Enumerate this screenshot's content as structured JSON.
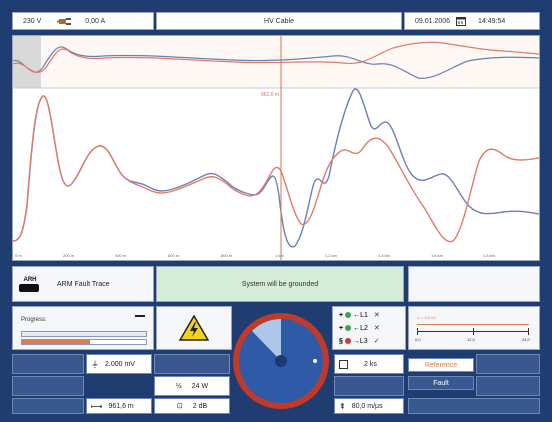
{
  "header": {
    "voltage": "230 V",
    "current": "0,00 A",
    "title": "HV Cable",
    "date": "09.01.2006",
    "time": "14:49:54"
  },
  "plot": {
    "cursor_label": "961,6 m",
    "x_ticks": [
      "0 m",
      "200 m",
      "400 m",
      "600 m",
      "800 m",
      "1 km",
      "1,2 km",
      "1,4 km",
      "1,6 km",
      "1,8 km"
    ],
    "trace_colors": {
      "blue": "#6d7fb5",
      "red": "#e07c68",
      "cursor": "#e0724e"
    }
  },
  "mode": {
    "logo_text": "ARH",
    "label": "ARM Fault Trace",
    "status": "System will be grounded"
  },
  "progress": {
    "label": "Progress:",
    "value": 0.55
  },
  "phases": {
    "l1": "L1",
    "l2": "L2",
    "l3": "L3",
    "l1_mark": "✕",
    "l2_mark": "✕",
    "l3_mark": "✓"
  },
  "scale": {
    "top": "U = 3,0 kV",
    "t0": "0,0",
    "t1": "12,0",
    "t2": "24,0"
  },
  "controls": {
    "gain": "2.000 mV",
    "power": "24 W",
    "distance": "961,6 m",
    "attenuation": "2 dB",
    "time": "2 ks",
    "velocity": "80,0 m/µs",
    "reference_button": "Reference",
    "fault_button": "Fault"
  },
  "colors": {
    "background": "#1f3d70",
    "accent": "#e0724e",
    "status_green": "#d4eed8"
  }
}
